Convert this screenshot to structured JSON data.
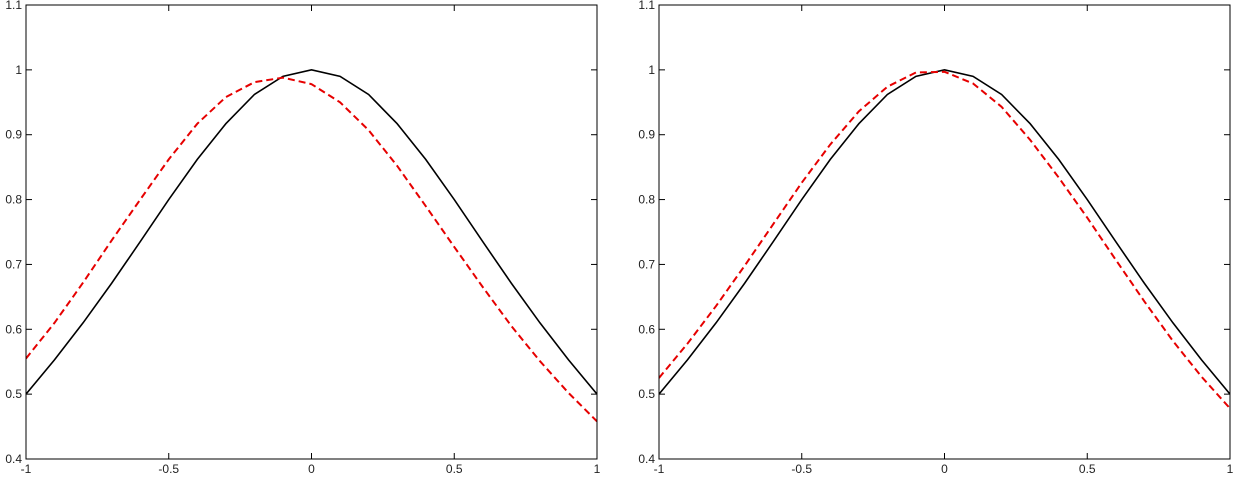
{
  "colors": {
    "background": "#ffffff",
    "axes": "#000000",
    "exact_curve": "#000000",
    "approx_curve": "#e60000"
  },
  "chart_data": [
    {
      "type": "line",
      "title": "",
      "xlabel": "",
      "ylabel": "",
      "xlim": [
        -1,
        1
      ],
      "ylim": [
        0.4,
        1.1
      ],
      "grid": false,
      "x_ticks": [
        "-1",
        "-0.5",
        "0",
        "0.5",
        "1"
      ],
      "y_ticks": [
        "0.4",
        "0.5",
        "0.6",
        "0.7",
        "0.8",
        "0.9",
        "1",
        "1.1"
      ],
      "series": [
        {
          "style": "solid",
          "color": "#000000",
          "x": [
            -1,
            -0.9,
            -0.8,
            -0.7,
            -0.6,
            -0.5,
            -0.4,
            -0.3,
            -0.2,
            -0.1,
            0,
            0.1,
            0.2,
            0.3,
            0.4,
            0.5,
            0.6,
            0.7,
            0.8,
            0.9,
            1
          ],
          "y": [
            0.5,
            0.553,
            0.61,
            0.671,
            0.735,
            0.8,
            0.862,
            0.917,
            0.962,
            0.99,
            1.0,
            0.99,
            0.962,
            0.917,
            0.862,
            0.8,
            0.735,
            0.671,
            0.61,
            0.553,
            0.5
          ]
        },
        {
          "style": "dashed",
          "color": "#e60000",
          "x": [
            -1,
            -0.9,
            -0.8,
            -0.7,
            -0.6,
            -0.5,
            -0.4,
            -0.3,
            -0.2,
            -0.1,
            0,
            0.1,
            0.2,
            0.3,
            0.4,
            0.5,
            0.6,
            0.7,
            0.8,
            0.9,
            1
          ],
          "y": [
            0.555,
            0.61,
            0.672,
            0.737,
            0.8,
            0.862,
            0.917,
            0.958,
            0.981,
            0.988,
            0.978,
            0.95,
            0.907,
            0.852,
            0.79,
            0.727,
            0.665,
            0.605,
            0.551,
            0.502,
            0.458
          ]
        }
      ]
    },
    {
      "type": "line",
      "title": "",
      "xlabel": "",
      "ylabel": "",
      "xlim": [
        -1,
        1
      ],
      "ylim": [
        0.4,
        1.1
      ],
      "grid": false,
      "x_ticks": [
        "-1",
        "-0.5",
        "0",
        "0.5",
        "1"
      ],
      "y_ticks": [
        "0.4",
        "0.5",
        "0.6",
        "0.7",
        "0.8",
        "0.9",
        "1",
        "1.1"
      ],
      "series": [
        {
          "style": "solid",
          "color": "#000000",
          "x": [
            -1,
            -0.9,
            -0.8,
            -0.7,
            -0.6,
            -0.5,
            -0.4,
            -0.3,
            -0.2,
            -0.1,
            0,
            0.1,
            0.2,
            0.3,
            0.4,
            0.5,
            0.6,
            0.7,
            0.8,
            0.9,
            1
          ],
          "y": [
            0.5,
            0.553,
            0.61,
            0.671,
            0.735,
            0.8,
            0.862,
            0.917,
            0.962,
            0.99,
            1.0,
            0.99,
            0.962,
            0.917,
            0.862,
            0.8,
            0.735,
            0.671,
            0.61,
            0.553,
            0.5
          ]
        },
        {
          "style": "dashed",
          "color": "#e60000",
          "x": [
            -1,
            -0.9,
            -0.8,
            -0.7,
            -0.6,
            -0.5,
            -0.4,
            -0.3,
            -0.2,
            -0.1,
            0,
            0.1,
            0.2,
            0.3,
            0.4,
            0.5,
            0.6,
            0.7,
            0.8,
            0.9,
            1
          ],
          "y": [
            0.525,
            0.578,
            0.636,
            0.698,
            0.762,
            0.826,
            0.885,
            0.936,
            0.974,
            0.996,
            0.997,
            0.979,
            0.943,
            0.892,
            0.834,
            0.772,
            0.707,
            0.643,
            0.582,
            0.527,
            0.478
          ]
        }
      ]
    }
  ]
}
